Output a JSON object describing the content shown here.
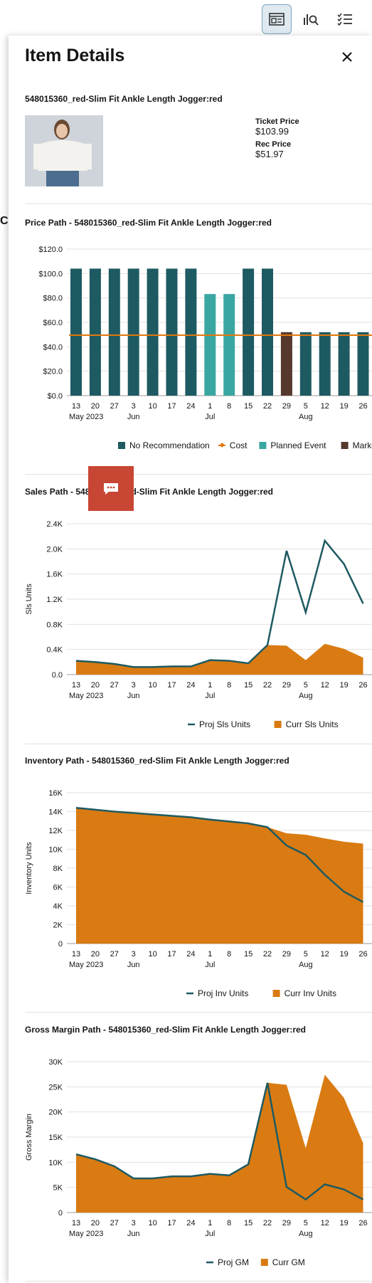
{
  "panel": {
    "title": "Item Details",
    "item_name": "548015360_red-Slim Fit Ankle Length Jogger:red",
    "ticket_price_label": "Ticket Price",
    "ticket_price": "$103.99",
    "rec_price_label": "Rec Price",
    "rec_price": "$51.97",
    "left_edge_letter": "C"
  },
  "toolbar": {
    "icons": [
      "details-view-icon",
      "chart-search-icon",
      "checklist-icon"
    ],
    "active": "details-view-icon"
  },
  "x_ticks": [
    "13",
    "20",
    "27",
    "3",
    "10",
    "17",
    "24",
    "1",
    "8",
    "15",
    "22",
    "29",
    "5",
    "12",
    "19",
    "26"
  ],
  "month_labels": [
    "May 2023",
    "Jun",
    "Jul",
    "Aug"
  ],
  "chart_data": [
    {
      "type": "bar",
      "title": "Price Path  -  548015360_red-Slim Fit Ankle Length Jogger:red",
      "categories": [
        "13",
        "20",
        "27",
        "3",
        "10",
        "17",
        "24",
        "1",
        "8",
        "15",
        "22",
        "29",
        "5",
        "12",
        "19",
        "26"
      ],
      "series": [
        {
          "name": "No Recommendation",
          "color": "#1e5a62",
          "values": [
            103.99,
            103.99,
            103.99,
            103.99,
            103.99,
            103.99,
            103.99,
            null,
            null,
            103.99,
            103.99,
            null,
            51.97,
            51.97,
            51.97,
            51.97
          ]
        },
        {
          "name": "Cost",
          "type": "line",
          "color": "#e2780e",
          "values": [
            49.5,
            49.5,
            49.5,
            49.5,
            49.5,
            49.5,
            49.5,
            49.5,
            49.5,
            49.5,
            49.5,
            49.5,
            49.5,
            49.5,
            49.5,
            49.5
          ]
        },
        {
          "name": "Planned Event",
          "color": "#3aa6a1",
          "values": [
            null,
            null,
            null,
            null,
            null,
            null,
            null,
            83.19,
            83.19,
            null,
            null,
            null,
            null,
            null,
            null,
            null
          ]
        },
        {
          "name": "Markdo",
          "color": "#55392c",
          "values": [
            null,
            null,
            null,
            null,
            null,
            null,
            null,
            null,
            null,
            null,
            null,
            51.97,
            null,
            null,
            null,
            null
          ]
        }
      ],
      "yticks": [
        "$0.0",
        "$20.0",
        "$40.0",
        "$60.0",
        "$80.0",
        "$100.0",
        "$120.0"
      ],
      "ylim": [
        0,
        120
      ],
      "legend_position": "bottom"
    },
    {
      "type": "area",
      "title": "Sales Path  -  548015360_red-Slim Fit Ankle Length Jogger:red",
      "ylabel": "Sls Units",
      "categories": [
        "13",
        "20",
        "27",
        "3",
        "10",
        "17",
        "24",
        "1",
        "8",
        "15",
        "22",
        "29",
        "5",
        "12",
        "19",
        "26"
      ],
      "series": [
        {
          "name": "Proj Sls Units",
          "type": "line",
          "color": "#1e5a62",
          "values": [
            220,
            200,
            170,
            120,
            120,
            130,
            130,
            230,
            220,
            180,
            470,
            1970,
            990,
            2130,
            1760,
            1130
          ]
        },
        {
          "name": "Curr Sls Units",
          "type": "area",
          "color": "#d97b12",
          "values": [
            220,
            200,
            170,
            120,
            120,
            130,
            130,
            230,
            220,
            180,
            470,
            460,
            230,
            490,
            410,
            270
          ]
        }
      ],
      "yticks": [
        "0.0",
        "0.4K",
        "0.8K",
        "1.2K",
        "1.6K",
        "2.0K",
        "2.4K"
      ],
      "ylim": [
        0,
        2400
      ],
      "legend_position": "bottom"
    },
    {
      "type": "area",
      "title": "Inventory Path  -  548015360_red-Slim Fit Ankle Length Jogger:red",
      "ylabel": "Inventory Units",
      "categories": [
        "13",
        "20",
        "27",
        "3",
        "10",
        "17",
        "24",
        "1",
        "8",
        "15",
        "22",
        "29",
        "5",
        "12",
        "19",
        "26"
      ],
      "series": [
        {
          "name": "Proj Inv Units",
          "type": "line",
          "color": "#1e5a62",
          "values": [
            14400,
            14200,
            14000,
            13850,
            13700,
            13550,
            13400,
            13150,
            12950,
            12750,
            12350,
            10400,
            9400,
            7300,
            5500,
            4400
          ]
        },
        {
          "name": "Curr Inv Units",
          "type": "area",
          "color": "#d97b12",
          "values": [
            14400,
            14200,
            14000,
            13850,
            13700,
            13550,
            13400,
            13150,
            12950,
            12750,
            12350,
            11700,
            11550,
            11150,
            10800,
            10600
          ]
        }
      ],
      "yticks": [
        "0",
        "2K",
        "4K",
        "6K",
        "8K",
        "10K",
        "12K",
        "14K",
        "16K"
      ],
      "ylim": [
        0,
        16000
      ],
      "legend_position": "bottom"
    },
    {
      "type": "area",
      "title": "Gross Margin Path  -  548015360_red-Slim Fit Ankle Length Jogger:red",
      "ylabel": "Gross Margin",
      "categories": [
        "13",
        "20",
        "27",
        "3",
        "10",
        "17",
        "24",
        "1",
        "8",
        "15",
        "22",
        "29",
        "5",
        "12",
        "19",
        "26"
      ],
      "series": [
        {
          "name": "Proj GM",
          "type": "line",
          "color": "#1e5a62",
          "values": [
            11600,
            10600,
            9200,
            6800,
            6800,
            7200,
            7200,
            7700,
            7400,
            9600,
            25800,
            5100,
            2600,
            5600,
            4600,
            2600
          ]
        },
        {
          "name": "Curr GM",
          "type": "area",
          "color": "#d97b12",
          "values": [
            11600,
            10600,
            9200,
            6800,
            6800,
            7200,
            7200,
            7700,
            7400,
            9600,
            25800,
            25400,
            12800,
            27400,
            22800,
            13800
          ]
        }
      ],
      "yticks": [
        "0",
        "5K",
        "10K",
        "15K",
        "20K",
        "25K",
        "30K"
      ],
      "ylim": [
        0,
        30000
      ],
      "legend_position": "bottom"
    }
  ]
}
